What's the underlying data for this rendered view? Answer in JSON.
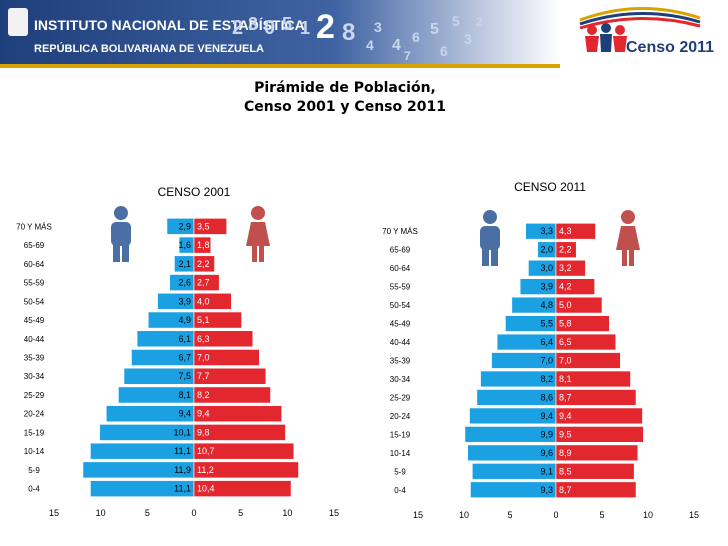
{
  "header": {
    "logo_line1": "INSTITUTO NACIONAL DE ESTADÍSTICA",
    "logo_line2": "REPÚBLICA BOLIVARIANA DE VENEZUELA",
    "census_badge": "Censo 2011",
    "decor_digits": [
      "2",
      "3",
      "0",
      "5",
      "1",
      "2",
      "8",
      "4",
      "3",
      "4",
      "7",
      "6",
      "5",
      "6",
      "5",
      "3",
      "2"
    ]
  },
  "colors": {
    "male": "#1ba1e2",
    "female": "#e2282e",
    "male_icon": "#4a6fa5",
    "female_icon": "#c0504d",
    "banner": "#1f3f7a"
  },
  "chart_data": [
    {
      "type": "bar",
      "title": "CENSO 2001",
      "main_title": [
        "Pirámide de Población,",
        "Censo 2001 y Censo 2011"
      ],
      "categories": [
        "70 Y MÁS",
        "65-69",
        "60-64",
        "55-59",
        "50-54",
        "45-49",
        "40-44",
        "35-39",
        "30-34",
        "25-29",
        "20-24",
        "15-19",
        "10-14",
        "5-9",
        "0-4"
      ],
      "series": [
        {
          "name": "Hombres",
          "values": [
            2.9,
            1.6,
            2.1,
            2.6,
            3.9,
            4.9,
            6.1,
            6.7,
            7.5,
            8.1,
            9.4,
            10.1,
            11.1,
            11.9,
            11.1
          ]
        },
        {
          "name": "Mujeres",
          "values": [
            3.5,
            1.8,
            2.2,
            2.7,
            4.0,
            5.1,
            6.3,
            7.0,
            7.7,
            8.2,
            9.4,
            9.8,
            10.7,
            11.2,
            10.4
          ]
        }
      ],
      "value_labels_male": [
        "2,9",
        "1,6",
        "2,1",
        "2,6",
        "3,9",
        "4,9",
        "6,1",
        "6,7",
        "7,5",
        "8,1",
        "9,4",
        "10,1",
        "11,1",
        "11,9",
        "11,1"
      ],
      "value_labels_female": [
        "3,5",
        "1,8",
        "2,2",
        "2,7",
        "4,0",
        "5,1",
        "6,3",
        "7,0",
        "7,7",
        "8,2",
        "9,4",
        "9,8",
        "10,7",
        "11,2",
        "10,4"
      ],
      "xticks": [
        "15",
        "10",
        "5",
        "0",
        "5",
        "10",
        "15"
      ],
      "xlim": [
        -15,
        15
      ]
    },
    {
      "type": "bar",
      "title": "CENSO 2011",
      "categories": [
        "70 Y MÁS",
        "65-69",
        "60-64",
        "55-59",
        "50-54",
        "45-49",
        "40-44",
        "35-39",
        "30-34",
        "25-29",
        "20-24",
        "15-19",
        "10-14",
        "5-9",
        "0-4"
      ],
      "series": [
        {
          "name": "Hombres",
          "values": [
            3.3,
            2.0,
            3.0,
            3.9,
            4.8,
            5.5,
            6.4,
            7.0,
            8.2,
            8.6,
            9.4,
            9.9,
            9.6,
            9.1,
            9.3
          ]
        },
        {
          "name": "Mujeres",
          "values": [
            4.3,
            2.2,
            3.2,
            4.2,
            5.0,
            5.8,
            6.5,
            7.0,
            8.1,
            8.7,
            9.4,
            9.5,
            8.9,
            8.5,
            8.7
          ]
        }
      ],
      "value_labels_male": [
        "3,3",
        "2,0",
        "3,0",
        "3,9",
        "4,8",
        "5,5",
        "6,4",
        "7,0",
        "8,2",
        "8,6",
        "9,4",
        "9,9",
        "9,6",
        "9,1",
        "9,3"
      ],
      "value_labels_female": [
        "4,3",
        "2,2",
        "3,2",
        "4,2",
        "5,0",
        "5,8",
        "6,5",
        "7,0",
        "8,1",
        "8,7",
        "9,4",
        "9,5",
        "8,9",
        "8,5",
        "8,7"
      ],
      "xticks": [
        "15",
        "10",
        "5",
        "0",
        "5",
        "10",
        "15"
      ],
      "xlim": [
        -15,
        15
      ]
    }
  ]
}
